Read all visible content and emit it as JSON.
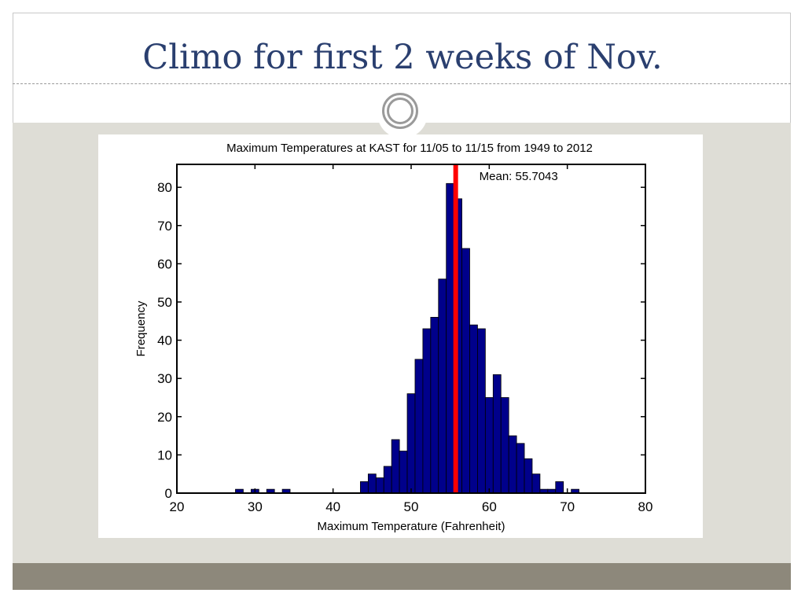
{
  "slide": {
    "title": "Climo for first 2 weeks of Nov.",
    "colors": {
      "title": "#2a3f6f",
      "content_background": "#deddd6",
      "footer_bar": "#8d887b",
      "bar_fill": "#00008b",
      "mean_line": "#ff0000"
    }
  },
  "chart_data": {
    "type": "bar",
    "title": "Maximum Temperatures at KAST for 11/05 to 11/15 from 1949 to 2012",
    "xlabel": "Maximum Temperature (Fahrenheit)",
    "ylabel": "Frequency",
    "xlim": [
      20,
      80
    ],
    "ylim": [
      0,
      86
    ],
    "xticks": [
      20,
      30,
      40,
      50,
      60,
      70,
      80
    ],
    "yticks": [
      0,
      10,
      20,
      30,
      40,
      50,
      60,
      70,
      80
    ],
    "bin_width": 1,
    "bins": [
      {
        "x": 28,
        "value": 1
      },
      {
        "x": 30,
        "value": 1
      },
      {
        "x": 32,
        "value": 1
      },
      {
        "x": 34,
        "value": 1
      },
      {
        "x": 44,
        "value": 3
      },
      {
        "x": 45,
        "value": 5
      },
      {
        "x": 46,
        "value": 4
      },
      {
        "x": 47,
        "value": 7
      },
      {
        "x": 48,
        "value": 14
      },
      {
        "x": 49,
        "value": 11
      },
      {
        "x": 50,
        "value": 26
      },
      {
        "x": 51,
        "value": 35
      },
      {
        "x": 52,
        "value": 43
      },
      {
        "x": 53,
        "value": 46
      },
      {
        "x": 54,
        "value": 56
      },
      {
        "x": 55,
        "value": 81
      },
      {
        "x": 56,
        "value": 77
      },
      {
        "x": 57,
        "value": 64
      },
      {
        "x": 58,
        "value": 44
      },
      {
        "x": 59,
        "value": 43
      },
      {
        "x": 60,
        "value": 25
      },
      {
        "x": 61,
        "value": 31
      },
      {
        "x": 62,
        "value": 25
      },
      {
        "x": 63,
        "value": 15
      },
      {
        "x": 64,
        "value": 13
      },
      {
        "x": 65,
        "value": 9
      },
      {
        "x": 66,
        "value": 5
      },
      {
        "x": 67,
        "value": 1
      },
      {
        "x": 68,
        "value": 1
      },
      {
        "x": 69,
        "value": 3
      },
      {
        "x": 71,
        "value": 1
      }
    ],
    "mean": 55.7043,
    "mean_label": "Mean: 55.7043",
    "grid": false,
    "legend": "none"
  }
}
